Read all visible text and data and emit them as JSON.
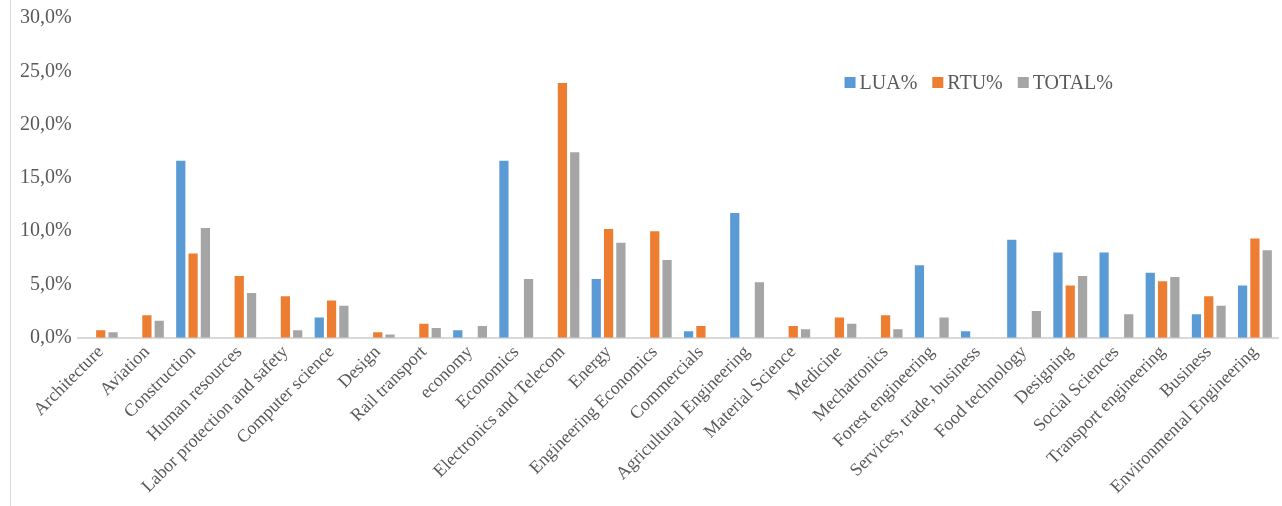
{
  "chart_data": {
    "type": "bar",
    "categories": [
      "Architecture",
      "Aviation",
      "Construction",
      "Human resources",
      "Labor protection and safety",
      "Computer science",
      "Design",
      "Rail transport",
      "economy",
      "Economics",
      "Electronics and Telecom",
      "Energy",
      "Engineering Economics",
      "Commercials",
      "Agricultural Engineering",
      "Material Science",
      "Medicine",
      "Mechatronics",
      "Forest engineering",
      "Services, trade, business",
      "Food technology",
      "Designing",
      "Social Sciences",
      "Transport engineering",
      "Business",
      "Environmental Engineering"
    ],
    "series": [
      {
        "name": "LUA%",
        "color": "#5b9bd5",
        "values": [
          0,
          0,
          16.6,
          0,
          0,
          1.9,
          0,
          0,
          0.7,
          16.6,
          0,
          5.5,
          0,
          0.6,
          11.7,
          0,
          0,
          0,
          6.8,
          0.6,
          9.2,
          8.0,
          8.0,
          6.1,
          2.2,
          4.9
        ]
      },
      {
        "name": "RTU%",
        "color": "#ed7d31",
        "values": [
          0.7,
          2.1,
          7.9,
          5.8,
          3.9,
          3.5,
          0.5,
          1.3,
          0,
          0,
          23.9,
          10.2,
          10.0,
          1.1,
          0,
          1.1,
          1.9,
          2.1,
          0,
          0,
          0,
          4.9,
          0,
          5.3,
          3.9,
          9.3
        ]
      },
      {
        "name": "TOTAL%",
        "color": "#a5a5a5",
        "values": [
          0.5,
          1.6,
          10.3,
          4.2,
          0.7,
          3.0,
          0.3,
          0.9,
          1.1,
          5.5,
          17.4,
          8.9,
          7.3,
          null,
          5.2,
          0.8,
          1.3,
          0.8,
          1.9,
          null,
          2.5,
          5.8,
          2.2,
          5.7,
          3.0,
          8.2
        ]
      }
    ],
    "ylim": [
      0,
      30
    ],
    "yticks": [
      {
        "value": 0,
        "label": "0,0%"
      },
      {
        "value": 5,
        "label": "5,0%"
      },
      {
        "value": 10,
        "label": "10,0%"
      },
      {
        "value": 15,
        "label": "15,0%"
      },
      {
        "value": 20,
        "label": "20,0%"
      },
      {
        "value": 25,
        "label": "25,0%"
      },
      {
        "value": 30,
        "label": "30,0%"
      }
    ],
    "grid": false,
    "legend": "top right"
  }
}
